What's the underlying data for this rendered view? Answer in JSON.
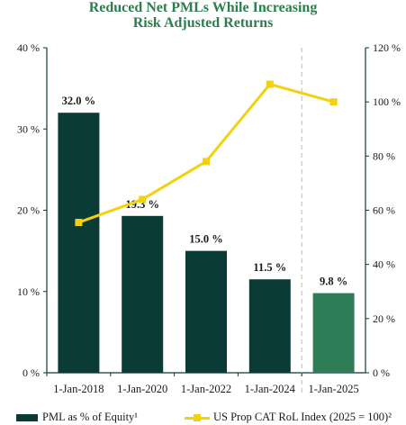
{
  "title_lines": [
    "Reduced Net PMLs While Increasing",
    "Risk Adjusted Returns"
  ],
  "chart_data": {
    "type": "bar",
    "categories": [
      "1-Jan-2018",
      "1-Jan-2020",
      "1-Jan-2022",
      "1-Jan-2024",
      "1-Jan-2025"
    ],
    "left_axis": {
      "ylim": [
        0,
        40
      ],
      "ticks": [
        "0 %",
        "10 %",
        "20 %",
        "30 %",
        "40 %"
      ]
    },
    "right_axis": {
      "ylim": [
        0,
        120
      ],
      "ticks": [
        "0 %",
        "20 %",
        "40 %",
        "60 %",
        "80 %",
        "100 %",
        "120 %"
      ]
    },
    "series": [
      {
        "name": "PML as % of Equity¹",
        "type": "bar",
        "axis": "left",
        "values": [
          32.0,
          19.3,
          15.0,
          11.5,
          9.8
        ],
        "labels": [
          "32.0 %",
          "19.3 %",
          "15.0 %",
          "11.5 %",
          "9.8 %"
        ],
        "color": "#0b3b36",
        "highlight_color": "#2e7d57"
      },
      {
        "name": "US Prop CAT RoL Index (2025 = 100)²",
        "type": "line",
        "axis": "right",
        "values": [
          55.5,
          64,
          78,
          106.5,
          100
        ],
        "color": "#f2d111"
      }
    ],
    "separator_before_last": true,
    "grid": false
  }
}
